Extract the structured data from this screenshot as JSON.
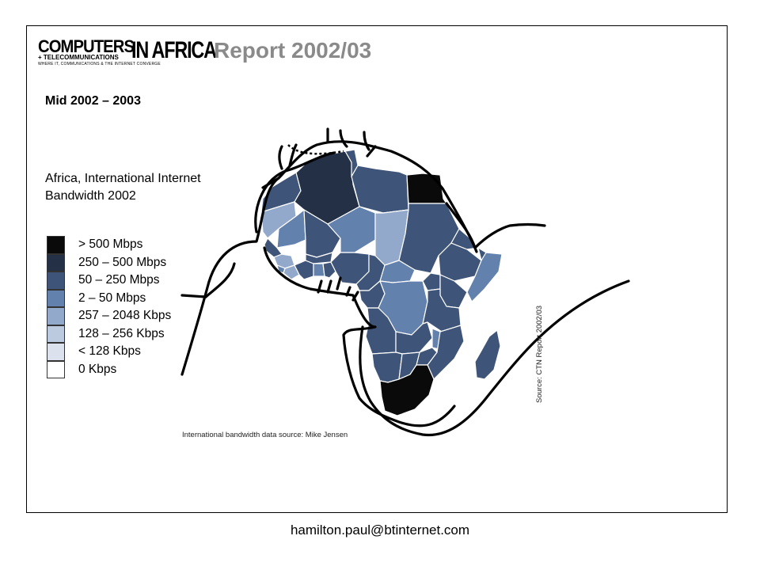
{
  "header": {
    "logo_main": "COMPUTERS",
    "logo_africa": "IN AFRICA",
    "logo_sub": "+ TELECOMMUNICATIONS",
    "logo_tag": "WHERE IT, COMMUNICATIONS & THE INTERNET CONVERGE",
    "report_title": "Report 2002/03"
  },
  "period": "Mid 2002 – 2003",
  "map_title": "Africa, International Internet Bandwidth 2002",
  "legend": [
    {
      "label": "> 500 Mbps",
      "color": "#0a0a0a"
    },
    {
      "label": "250 – 500 Mbps",
      "color": "#243046"
    },
    {
      "label": "50 – 250 Mbps",
      "color": "#3e5478"
    },
    {
      "label": "2 – 50 Mbps",
      "color": "#6381ad"
    },
    {
      "label": "257 – 2048 Kbps",
      "color": "#93a9cb"
    },
    {
      "label": "128 – 256 Kbps",
      "color": "#bccadf"
    },
    {
      "label": "< 128 Kbps",
      "color": "#dbe2ee"
    },
    {
      "label": "0 Kbps",
      "color": "#ffffff"
    }
  ],
  "credit": "International bandwidth data source: Mike Jensen",
  "source": "Source: CTN Report 2002/03",
  "footer": "hamilton.paul@btinternet.com",
  "map_regions": [
    {
      "name": "morocco",
      "color": "#3e5478"
    },
    {
      "name": "algeria",
      "color": "#243046"
    },
    {
      "name": "tunisia",
      "color": "#3e5478"
    },
    {
      "name": "libya",
      "color": "#3e5478"
    },
    {
      "name": "egypt",
      "color": "#0a0a0a"
    },
    {
      "name": "western-sahara",
      "color": "#93a9cb"
    },
    {
      "name": "mauritania",
      "color": "#6381ad"
    },
    {
      "name": "mali",
      "color": "#3e5478"
    },
    {
      "name": "niger",
      "color": "#6381ad"
    },
    {
      "name": "chad",
      "color": "#93a9cb"
    },
    {
      "name": "sudan",
      "color": "#3e5478"
    },
    {
      "name": "senegal",
      "color": "#3e5478"
    },
    {
      "name": "guinea",
      "color": "#93a9cb"
    },
    {
      "name": "sierra-leone",
      "color": "#6381ad"
    },
    {
      "name": "liberia",
      "color": "#93a9cb"
    },
    {
      "name": "cote-divoire",
      "color": "#3e5478"
    },
    {
      "name": "burkina-faso",
      "color": "#3e5478"
    },
    {
      "name": "ghana",
      "color": "#6381ad"
    },
    {
      "name": "togo-benin",
      "color": "#3e5478"
    },
    {
      "name": "nigeria",
      "color": "#3e5478"
    },
    {
      "name": "cameroon",
      "color": "#3e5478"
    },
    {
      "name": "car",
      "color": "#6381ad"
    },
    {
      "name": "ethiopia",
      "color": "#3e5478"
    },
    {
      "name": "eritrea",
      "color": "#3e5478"
    },
    {
      "name": "djibouti",
      "color": "#3e5478"
    },
    {
      "name": "somalia",
      "color": "#6381ad"
    },
    {
      "name": "gabon-congo",
      "color": "#3e5478"
    },
    {
      "name": "drc",
      "color": "#6381ad"
    },
    {
      "name": "uganda",
      "color": "#3e5478"
    },
    {
      "name": "kenya",
      "color": "#3e5478"
    },
    {
      "name": "tanzania",
      "color": "#3e5478"
    },
    {
      "name": "angola",
      "color": "#3e5478"
    },
    {
      "name": "zambia",
      "color": "#3e5478"
    },
    {
      "name": "malawi",
      "color": "#6381ad"
    },
    {
      "name": "mozambique",
      "color": "#3e5478"
    },
    {
      "name": "zimbabwe",
      "color": "#3e5478"
    },
    {
      "name": "namibia",
      "color": "#3e5478"
    },
    {
      "name": "botswana",
      "color": "#3e5478"
    },
    {
      "name": "south-africa",
      "color": "#0a0a0a"
    },
    {
      "name": "madagascar",
      "color": "#3e5478"
    }
  ]
}
